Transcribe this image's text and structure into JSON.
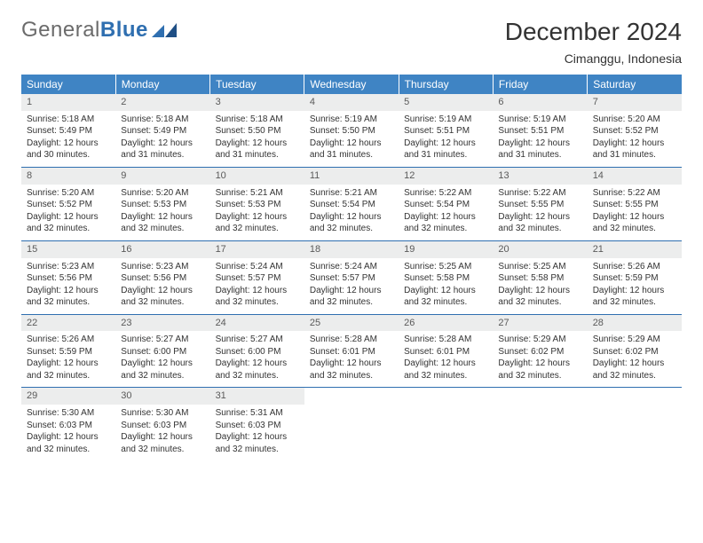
{
  "logo": {
    "text_gray": "General",
    "text_blue": "Blue"
  },
  "title": "December 2024",
  "location": "Cimanggu, Indonesia",
  "colors": {
    "header_bg": "#3f84c4",
    "header_text": "#ffffff",
    "rule": "#2f6fb0",
    "dayband_bg": "#eceded",
    "body_text": "#333333"
  },
  "weekdays": [
    "Sunday",
    "Monday",
    "Tuesday",
    "Wednesday",
    "Thursday",
    "Friday",
    "Saturday"
  ],
  "columns": 7,
  "rows": 5,
  "days": [
    {
      "n": "1",
      "sr": "5:18 AM",
      "ss": "5:49 PM",
      "dl": "12 hours and 30 minutes."
    },
    {
      "n": "2",
      "sr": "5:18 AM",
      "ss": "5:49 PM",
      "dl": "12 hours and 31 minutes."
    },
    {
      "n": "3",
      "sr": "5:18 AM",
      "ss": "5:50 PM",
      "dl": "12 hours and 31 minutes."
    },
    {
      "n": "4",
      "sr": "5:19 AM",
      "ss": "5:50 PM",
      "dl": "12 hours and 31 minutes."
    },
    {
      "n": "5",
      "sr": "5:19 AM",
      "ss": "5:51 PM",
      "dl": "12 hours and 31 minutes."
    },
    {
      "n": "6",
      "sr": "5:19 AM",
      "ss": "5:51 PM",
      "dl": "12 hours and 31 minutes."
    },
    {
      "n": "7",
      "sr": "5:20 AM",
      "ss": "5:52 PM",
      "dl": "12 hours and 31 minutes."
    },
    {
      "n": "8",
      "sr": "5:20 AM",
      "ss": "5:52 PM",
      "dl": "12 hours and 32 minutes."
    },
    {
      "n": "9",
      "sr": "5:20 AM",
      "ss": "5:53 PM",
      "dl": "12 hours and 32 minutes."
    },
    {
      "n": "10",
      "sr": "5:21 AM",
      "ss": "5:53 PM",
      "dl": "12 hours and 32 minutes."
    },
    {
      "n": "11",
      "sr": "5:21 AM",
      "ss": "5:54 PM",
      "dl": "12 hours and 32 minutes."
    },
    {
      "n": "12",
      "sr": "5:22 AM",
      "ss": "5:54 PM",
      "dl": "12 hours and 32 minutes."
    },
    {
      "n": "13",
      "sr": "5:22 AM",
      "ss": "5:55 PM",
      "dl": "12 hours and 32 minutes."
    },
    {
      "n": "14",
      "sr": "5:22 AM",
      "ss": "5:55 PM",
      "dl": "12 hours and 32 minutes."
    },
    {
      "n": "15",
      "sr": "5:23 AM",
      "ss": "5:56 PM",
      "dl": "12 hours and 32 minutes."
    },
    {
      "n": "16",
      "sr": "5:23 AM",
      "ss": "5:56 PM",
      "dl": "12 hours and 32 minutes."
    },
    {
      "n": "17",
      "sr": "5:24 AM",
      "ss": "5:57 PM",
      "dl": "12 hours and 32 minutes."
    },
    {
      "n": "18",
      "sr": "5:24 AM",
      "ss": "5:57 PM",
      "dl": "12 hours and 32 minutes."
    },
    {
      "n": "19",
      "sr": "5:25 AM",
      "ss": "5:58 PM",
      "dl": "12 hours and 32 minutes."
    },
    {
      "n": "20",
      "sr": "5:25 AM",
      "ss": "5:58 PM",
      "dl": "12 hours and 32 minutes."
    },
    {
      "n": "21",
      "sr": "5:26 AM",
      "ss": "5:59 PM",
      "dl": "12 hours and 32 minutes."
    },
    {
      "n": "22",
      "sr": "5:26 AM",
      "ss": "5:59 PM",
      "dl": "12 hours and 32 minutes."
    },
    {
      "n": "23",
      "sr": "5:27 AM",
      "ss": "6:00 PM",
      "dl": "12 hours and 32 minutes."
    },
    {
      "n": "24",
      "sr": "5:27 AM",
      "ss": "6:00 PM",
      "dl": "12 hours and 32 minutes."
    },
    {
      "n": "25",
      "sr": "5:28 AM",
      "ss": "6:01 PM",
      "dl": "12 hours and 32 minutes."
    },
    {
      "n": "26",
      "sr": "5:28 AM",
      "ss": "6:01 PM",
      "dl": "12 hours and 32 minutes."
    },
    {
      "n": "27",
      "sr": "5:29 AM",
      "ss": "6:02 PM",
      "dl": "12 hours and 32 minutes."
    },
    {
      "n": "28",
      "sr": "5:29 AM",
      "ss": "6:02 PM",
      "dl": "12 hours and 32 minutes."
    },
    {
      "n": "29",
      "sr": "5:30 AM",
      "ss": "6:03 PM",
      "dl": "12 hours and 32 minutes."
    },
    {
      "n": "30",
      "sr": "5:30 AM",
      "ss": "6:03 PM",
      "dl": "12 hours and 32 minutes."
    },
    {
      "n": "31",
      "sr": "5:31 AM",
      "ss": "6:03 PM",
      "dl": "12 hours and 32 minutes."
    }
  ],
  "labels": {
    "sunrise": "Sunrise:",
    "sunset": "Sunset:",
    "daylight": "Daylight:"
  }
}
